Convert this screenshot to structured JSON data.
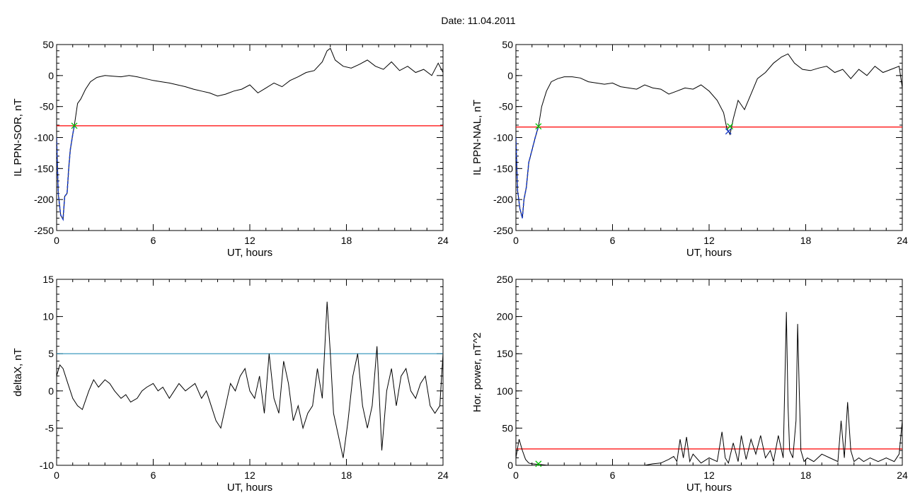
{
  "figure": {
    "title": "Date:  11.04.2011"
  },
  "chart_data": [
    {
      "id": "il-sor",
      "type": "line",
      "xlabel": "UT, hours",
      "ylabel": "IL PPN-SOR, nT",
      "xlim": [
        0,
        24
      ],
      "ylim": [
        -250,
        50
      ],
      "x_ticks": [
        0,
        6,
        12,
        18,
        24
      ],
      "y_ticks": [
        -250,
        -200,
        -150,
        -100,
        -50,
        0,
        50
      ],
      "threshold": {
        "value": -81,
        "color": "#ff0000"
      },
      "marks": [
        {
          "x": 1.1,
          "y": -81,
          "color": "#00c000",
          "symbol": "x"
        }
      ],
      "series": [
        {
          "color": "#000000",
          "x": [
            0,
            0.1,
            0.25,
            0.4,
            0.5,
            0.65,
            0.75,
            0.85,
            1.0,
            1.1,
            1.3,
            1.5,
            1.8,
            2.1,
            2.5,
            3.0,
            3.5,
            4.0,
            4.5,
            5.0,
            5.5,
            6.0,
            6.5,
            7.0,
            7.5,
            8.0,
            8.5,
            9.0,
            9.5,
            10.0,
            10.5,
            11.0,
            11.5,
            12.0,
            12.5,
            13.0,
            13.5,
            14.0,
            14.5,
            15.0,
            15.5,
            16.0,
            16.5,
            16.8,
            17.0,
            17.3,
            17.8,
            18.3,
            18.8,
            19.3,
            19.8,
            20.3,
            20.8,
            21.3,
            21.8,
            22.3,
            22.8,
            23.3,
            23.7,
            24.0
          ],
          "y": [
            -100,
            -190,
            -225,
            -232,
            -195,
            -190,
            -150,
            -120,
            -95,
            -81,
            -45,
            -38,
            -22,
            -10,
            -3,
            0,
            -1,
            -2,
            0,
            -2,
            -5,
            -8,
            -10,
            -12,
            -15,
            -18,
            -22,
            -25,
            -28,
            -33,
            -30,
            -25,
            -22,
            -15,
            -28,
            -20,
            -12,
            -18,
            -8,
            -2,
            5,
            8,
            22,
            40,
            44,
            25,
            15,
            12,
            18,
            25,
            15,
            10,
            22,
            8,
            15,
            5,
            10,
            0,
            20,
            5
          ]
        },
        {
          "color": "#1a3cc8",
          "x": [
            0,
            0.1,
            0.25,
            0.4,
            0.5,
            0.65,
            0.75,
            0.85,
            1.0,
            1.1
          ],
          "y": [
            -100,
            -190,
            -225,
            -232,
            -195,
            -190,
            -150,
            -120,
            -95,
            -81
          ]
        }
      ]
    },
    {
      "id": "il-nal",
      "type": "line",
      "xlabel": "UT, hours",
      "ylabel": "IL PPN-NAL, nT",
      "xlim": [
        0,
        24
      ],
      "ylim": [
        -250,
        50
      ],
      "x_ticks": [
        0,
        6,
        12,
        18,
        24
      ],
      "y_ticks": [
        -250,
        -200,
        -150,
        -100,
        -50,
        0,
        50
      ],
      "threshold": {
        "value": -83,
        "color": "#ff0000"
      },
      "marks": [
        {
          "x": 1.4,
          "y": -82,
          "color": "#00c000",
          "symbol": "x"
        },
        {
          "x": 13.3,
          "y": -82,
          "color": "#00c000",
          "symbol": "x"
        },
        {
          "x": 13.2,
          "y": -90,
          "color": "#1a3cc8",
          "symbol": "x"
        }
      ],
      "series": [
        {
          "color": "#000000",
          "x": [
            0,
            0.1,
            0.25,
            0.4,
            0.5,
            0.65,
            0.8,
            1.0,
            1.2,
            1.4,
            1.6,
            1.9,
            2.2,
            2.6,
            3.0,
            3.5,
            4.0,
            4.5,
            5.0,
            5.5,
            6.0,
            6.5,
            7.0,
            7.5,
            8.0,
            8.5,
            9.0,
            9.5,
            10.0,
            10.5,
            11.0,
            11.5,
            12.0,
            12.5,
            12.9,
            13.1,
            13.3,
            13.5,
            13.8,
            14.2,
            14.6,
            15.0,
            15.5,
            16.0,
            16.5,
            16.9,
            17.3,
            17.8,
            18.3,
            18.8,
            19.3,
            19.8,
            20.3,
            20.8,
            21.3,
            21.8,
            22.3,
            22.8,
            23.3,
            23.8,
            24.0
          ],
          "y": [
            -100,
            -185,
            -215,
            -230,
            -200,
            -180,
            -140,
            -120,
            -100,
            -82,
            -50,
            -25,
            -10,
            -5,
            -2,
            -2,
            -4,
            -10,
            -12,
            -14,
            -12,
            -18,
            -20,
            -22,
            -15,
            -20,
            -22,
            -30,
            -25,
            -20,
            -22,
            -15,
            -25,
            -40,
            -60,
            -85,
            -95,
            -70,
            -40,
            -55,
            -30,
            -5,
            5,
            20,
            30,
            35,
            20,
            10,
            8,
            12,
            15,
            5,
            10,
            -5,
            10,
            0,
            15,
            5,
            10,
            15,
            -20
          ]
        },
        {
          "color": "#1a3cc8",
          "x": [
            0,
            0.1,
            0.25,
            0.4,
            0.5,
            0.65,
            0.8,
            1.0,
            1.2,
            1.4
          ],
          "y": [
            -100,
            -185,
            -215,
            -230,
            -200,
            -180,
            -140,
            -120,
            -100,
            -82
          ]
        }
      ]
    },
    {
      "id": "delta-x",
      "type": "line",
      "xlabel": "UT, hours",
      "ylabel": "deltaX, nT",
      "xlim": [
        0,
        24
      ],
      "ylim": [
        -10,
        15
      ],
      "x_ticks": [
        0,
        6,
        12,
        18,
        24
      ],
      "y_ticks": [
        -10,
        -5,
        0,
        5,
        10,
        15
      ],
      "threshold": {
        "value": 5,
        "color": "#2a8fb8"
      },
      "marks": [],
      "series": [
        {
          "color": "#000000",
          "x": [
            0,
            0.2,
            0.4,
            0.7,
            1.0,
            1.3,
            1.6,
            2.0,
            2.3,
            2.6,
            3.0,
            3.3,
            3.6,
            4.0,
            4.3,
            4.6,
            5.0,
            5.3,
            5.6,
            6.0,
            6.3,
            6.6,
            7.0,
            7.3,
            7.6,
            8.0,
            8.3,
            8.6,
            9.0,
            9.3,
            9.6,
            9.9,
            10.2,
            10.5,
            10.8,
            11.1,
            11.4,
            11.7,
            12.0,
            12.3,
            12.6,
            12.9,
            13.2,
            13.5,
            13.8,
            14.1,
            14.4,
            14.7,
            15.0,
            15.3,
            15.6,
            15.9,
            16.2,
            16.5,
            16.8,
            17.0,
            17.2,
            17.5,
            17.8,
            18.1,
            18.4,
            18.7,
            19.0,
            19.3,
            19.6,
            19.9,
            20.2,
            20.5,
            20.8,
            21.1,
            21.4,
            21.7,
            22.0,
            22.3,
            22.6,
            22.9,
            23.2,
            23.5,
            23.8,
            24.0
          ],
          "y": [
            2,
            3.5,
            3,
            1,
            -1,
            -2,
            -2.5,
            0,
            1.5,
            0.5,
            1.5,
            1,
            0,
            -1,
            -0.5,
            -1.5,
            -1,
            0,
            0.5,
            1,
            0,
            0.5,
            -1,
            0,
            1,
            0,
            0.5,
            1,
            -1,
            0,
            -2,
            -4,
            -5,
            -2,
            1,
            0,
            2,
            3,
            0,
            -1,
            2,
            -3,
            5,
            -1,
            -3,
            4,
            1,
            -4,
            -2,
            -5,
            -3,
            -2,
            3,
            -1,
            12,
            5,
            -3,
            -6,
            -9,
            -4,
            2,
            5,
            -2,
            -5,
            -2,
            6,
            -8,
            0,
            3,
            -2,
            2,
            3,
            0,
            -1,
            1,
            2,
            -2,
            -3,
            -2,
            5
          ]
        }
      ]
    },
    {
      "id": "hor-power",
      "type": "line",
      "xlabel": "UT, hours",
      "ylabel": "Hor. power, nT^2",
      "xlim": [
        0,
        24
      ],
      "ylim": [
        0,
        250
      ],
      "x_ticks": [
        0,
        6,
        12,
        18,
        24
      ],
      "y_ticks": [
        0,
        50,
        100,
        150,
        200,
        250
      ],
      "threshold": {
        "value": 22,
        "color": "#ff0000"
      },
      "marks": [
        {
          "x": 1.4,
          "y": 2,
          "color": "#00c000",
          "symbol": "x"
        }
      ],
      "series": [
        {
          "color": "#000000",
          "x": [
            0,
            0.2,
            0.4,
            0.6,
            0.8,
            1.0,
            1.5,
            2.0,
            3.0,
            4.0,
            5.0,
            6.0,
            7.0,
            8.0,
            8.5,
            9.0,
            9.5,
            9.8,
            10.0,
            10.2,
            10.4,
            10.6,
            10.8,
            11.0,
            11.5,
            12.0,
            12.5,
            12.8,
            13.0,
            13.2,
            13.5,
            13.8,
            14.0,
            14.3,
            14.6,
            14.9,
            15.2,
            15.5,
            15.8,
            16.0,
            16.3,
            16.6,
            16.8,
            16.9,
            17.0,
            17.2,
            17.4,
            17.5,
            17.6,
            17.7,
            17.9,
            18.1,
            18.5,
            19.0,
            19.5,
            20.0,
            20.2,
            20.4,
            20.6,
            20.8,
            21.0,
            21.3,
            21.6,
            22.0,
            22.5,
            23.0,
            23.5,
            23.8,
            24.0
          ],
          "y": [
            10,
            35,
            20,
            8,
            3,
            2,
            1,
            0,
            0,
            0,
            0,
            0,
            0,
            0,
            2,
            3,
            8,
            12,
            5,
            35,
            10,
            38,
            5,
            15,
            3,
            10,
            5,
            45,
            10,
            3,
            30,
            5,
            40,
            8,
            35,
            15,
            40,
            10,
            20,
            5,
            40,
            10,
            206,
            80,
            20,
            10,
            60,
            190,
            100,
            20,
            5,
            10,
            5,
            15,
            10,
            5,
            60,
            10,
            85,
            20,
            5,
            10,
            5,
            10,
            5,
            10,
            5,
            15,
            60
          ]
        }
      ]
    }
  ]
}
